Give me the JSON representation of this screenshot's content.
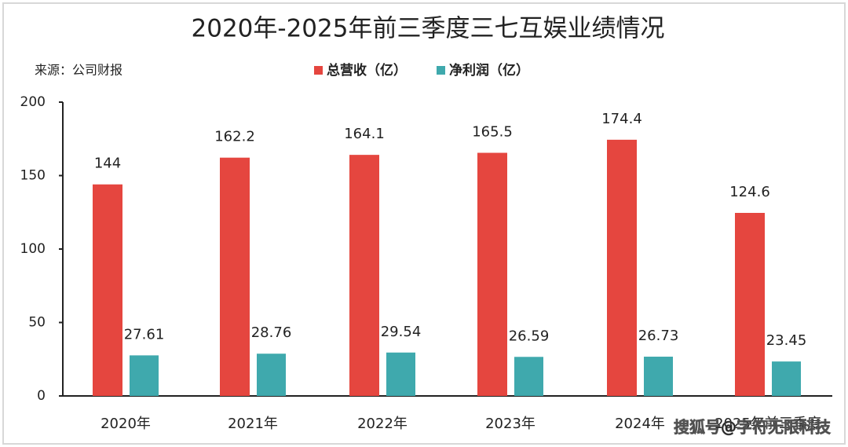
{
  "chart_data": {
    "type": "bar",
    "title": "2020年-2025年前三季度三七互娱业绩情况",
    "source": "来源：公司财报",
    "watermark": "搜狐号@字符无限科技",
    "categories": [
      "2020年",
      "2021年",
      "2022年",
      "2023年",
      "2024年",
      "2025年前三季度"
    ],
    "series": [
      {
        "name": "总营收（亿）",
        "color": "#e5463f",
        "values": [
          144,
          162.2,
          164.1,
          165.5,
          174.4,
          124.6
        ]
      },
      {
        "name": "净利润（亿）",
        "color": "#3fa9ad",
        "values": [
          27.61,
          28.76,
          29.54,
          26.59,
          26.73,
          23.45
        ]
      }
    ],
    "ylim": [
      0,
      200
    ],
    "yticks": [
      0,
      50,
      100,
      150,
      200
    ],
    "grid": false
  }
}
